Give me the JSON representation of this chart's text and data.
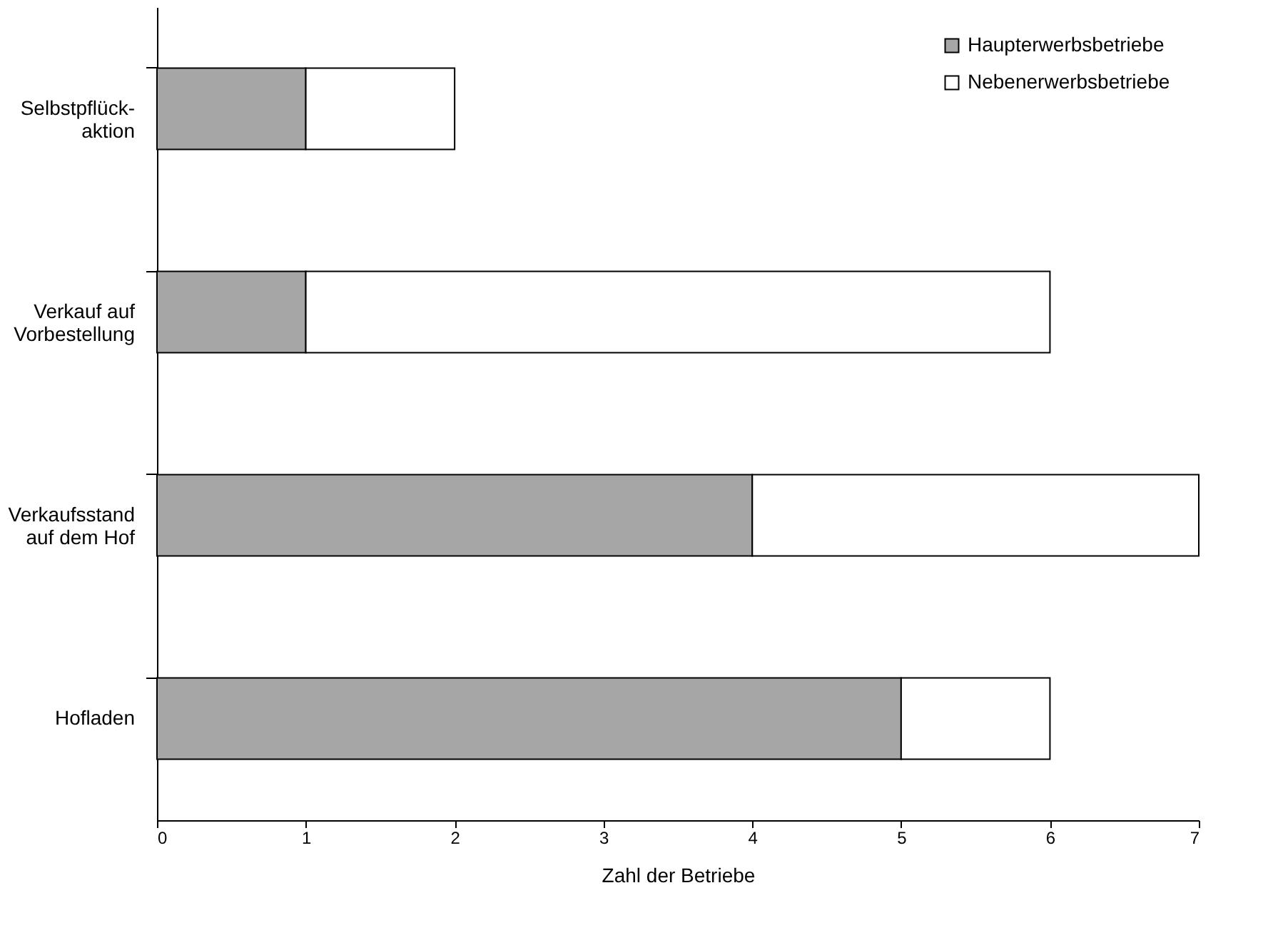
{
  "chart_data": {
    "type": "bar",
    "orientation": "horizontal",
    "stacked": true,
    "categories": [
      "Selbstpflück-\naktion",
      "Verkauf auf\nVorbestellung",
      "Verkaufsstand\nauf dem Hof",
      "Hofladen"
    ],
    "series": [
      {
        "name": "Haupterwerbsbetriebe",
        "color": "#a6a6a6",
        "values": [
          1,
          1,
          4,
          5
        ]
      },
      {
        "name": "Nebenerwerbsbetriebe",
        "color": "#ffffff",
        "values": [
          1,
          5,
          3,
          1
        ]
      }
    ],
    "xlabel": "Zahl der Betriebe",
    "xlim": [
      0,
      7
    ],
    "xticks": [
      0,
      1,
      2,
      3,
      4,
      5,
      6,
      7
    ],
    "grid": false,
    "legend": "top right"
  }
}
